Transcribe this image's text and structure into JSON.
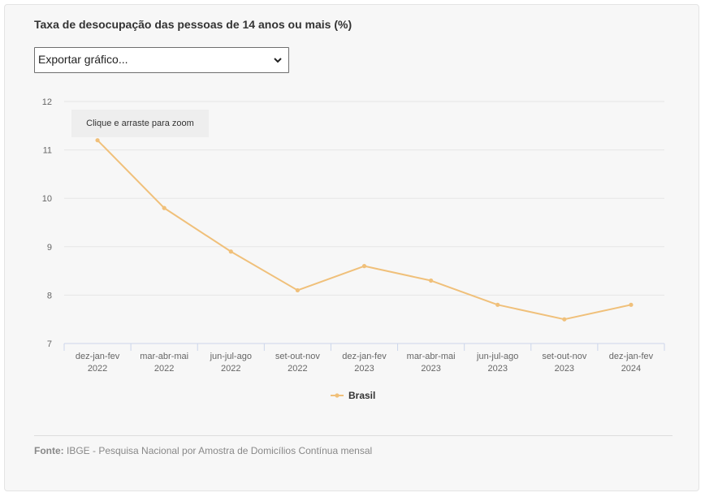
{
  "title": "Taxa de desocupação das pessoas de 14 anos ou mais (%)",
  "export_select": {
    "value": "Exportar gráfico...",
    "icon": "chevron-down-icon"
  },
  "tooltip": "Clique e arraste para zoom",
  "source": {
    "label": "Fonte:",
    "text": " IBGE - Pesquisa Nacional por Amostra de Domicílios Contínua mensal"
  },
  "colors": {
    "series": "#f0c07a",
    "grid": "#e6e6e6",
    "axis": "#ccd6eb",
    "text": "#666666"
  },
  "chart_data": {
    "type": "line",
    "title": "Taxa de desocupação das pessoas de 14 anos ou mais (%)",
    "categories": [
      [
        "dez-jan-fev",
        "2022"
      ],
      [
        "mar-abr-mai",
        "2022"
      ],
      [
        "jun-jul-ago",
        "2022"
      ],
      [
        "set-out-nov",
        "2022"
      ],
      [
        "dez-jan-fev",
        "2023"
      ],
      [
        "mar-abr-mai",
        "2023"
      ],
      [
        "jun-jul-ago",
        "2023"
      ],
      [
        "set-out-nov",
        "2023"
      ],
      [
        "dez-jan-fev",
        "2024"
      ]
    ],
    "series": [
      {
        "name": "Brasil",
        "values": [
          11.2,
          9.8,
          8.9,
          8.1,
          8.6,
          8.3,
          7.8,
          7.5,
          7.8
        ]
      }
    ],
    "ylim": [
      7,
      12
    ],
    "yticks": [
      7,
      8,
      9,
      10,
      11,
      12
    ],
    "grid": true,
    "legend": "bottom-center"
  }
}
